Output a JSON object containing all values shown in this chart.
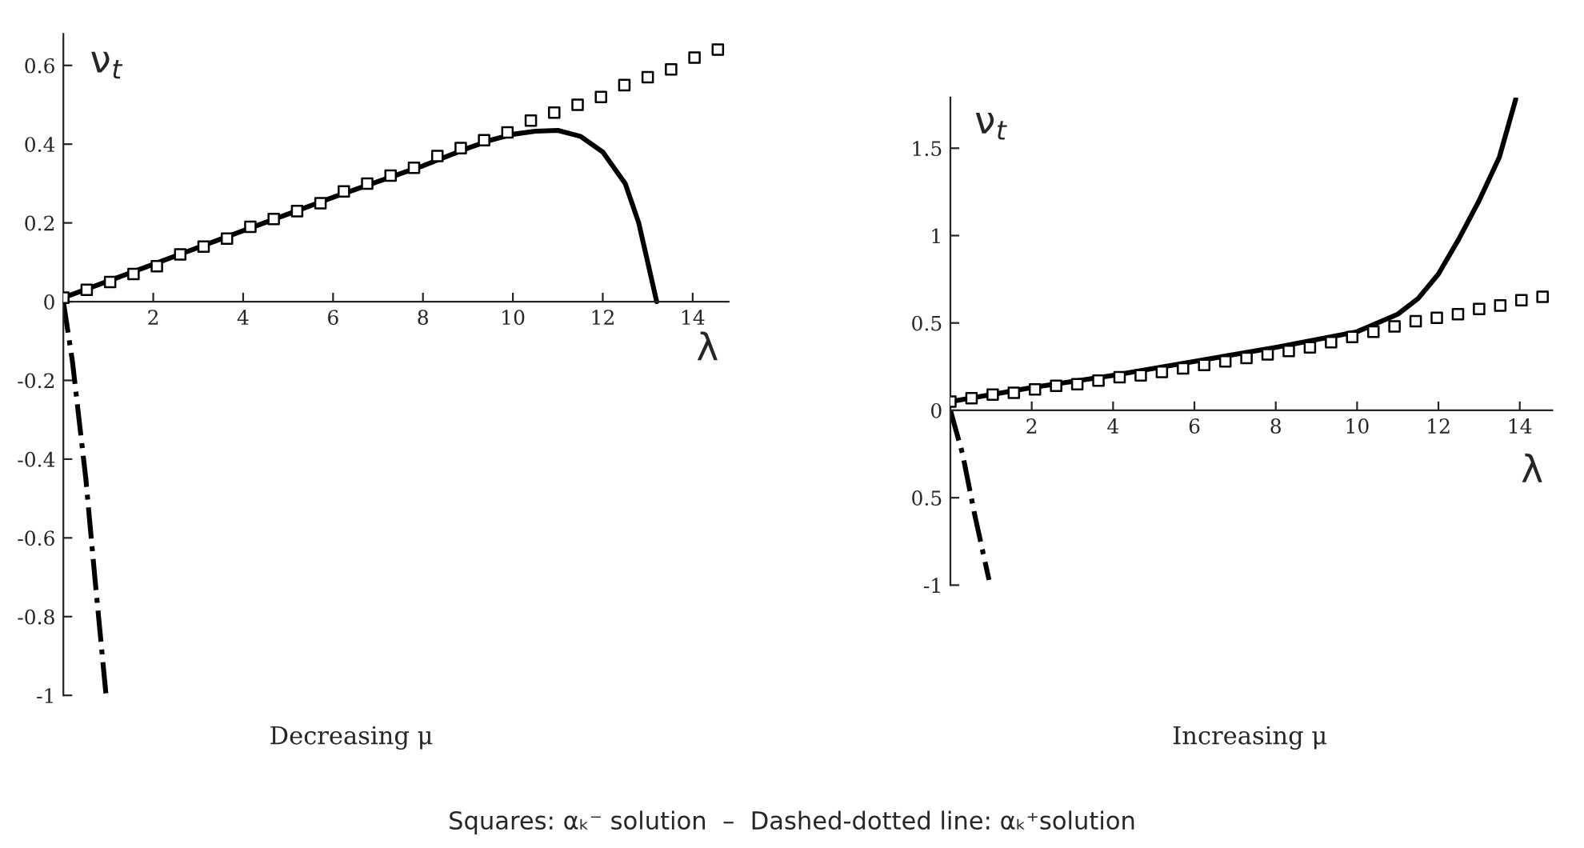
{
  "chart_data": [
    {
      "type": "line",
      "xlabel": "λ",
      "ylabel": "ν$_{t}$",
      "xlim": [
        0,
        14.8
      ],
      "ylim": [
        -1.0,
        0.68
      ],
      "xticks": [
        2,
        4,
        6,
        8,
        10,
        12,
        14
      ],
      "yticks": [
        -1,
        -0.8,
        -0.6,
        -0.4,
        -0.2,
        0,
        0.2,
        0.4,
        0.6
      ],
      "grid": false,
      "legend": false,
      "annotations": [
        "Decreasing μ",
        "Squares: αₖ⁻ solution  –  Dashed-dotted line: αₖ⁺solution"
      ],
      "series": [
        {
          "type": "scatter",
          "marker": "square",
          "color": "#000000",
          "x": [
            0,
            0.52,
            1.04,
            1.56,
            2.08,
            2.6,
            3.12,
            3.64,
            4.16,
            4.68,
            5.2,
            5.72,
            6.24,
            6.76,
            7.28,
            7.8,
            8.32,
            8.84,
            9.36,
            9.88,
            10.4,
            10.92,
            11.44,
            11.96,
            12.48,
            13.0,
            13.52,
            14.04,
            14.56
          ],
          "values": [
            0.01,
            0.03,
            0.05,
            0.07,
            0.09,
            0.12,
            0.14,
            0.16,
            0.19,
            0.21,
            0.23,
            0.25,
            0.28,
            0.3,
            0.32,
            0.34,
            0.37,
            0.39,
            0.41,
            0.43,
            0.46,
            0.48,
            0.5,
            0.52,
            0.55,
            0.57,
            0.59,
            0.62,
            0.64
          ]
        },
        {
          "line_style": "solid",
          "color": "#000000",
          "x": [
            0,
            2,
            4,
            6,
            8,
            9,
            9.5,
            10,
            10.5,
            11,
            11.5,
            12,
            12.5,
            12.8,
            13,
            13.2
          ],
          "values": [
            0.01,
            0.095,
            0.18,
            0.265,
            0.345,
            0.39,
            0.41,
            0.425,
            0.433,
            0.435,
            0.42,
            0.38,
            0.3,
            0.2,
            0.1,
            0.0
          ]
        },
        {
          "line_style": "dashdot",
          "color": "#000000",
          "x": [
            0,
            0.2,
            0.5,
            0.7,
            0.95
          ],
          "values": [
            0,
            -0.15,
            -0.45,
            -0.7,
            -1.0
          ]
        }
      ]
    },
    {
      "type": "line",
      "xlabel": "λ",
      "ylabel": "ν$_{t}$",
      "xlim": [
        0,
        14.8
      ],
      "ylim": [
        -1.0,
        1.79
      ],
      "xticks": [
        2,
        4,
        6,
        8,
        10,
        12,
        14
      ],
      "yticks": [
        -1,
        {
          "value": -0.5,
          "label": "0.5"
        },
        0,
        0.5,
        1,
        1.5
      ],
      "grid": false,
      "legend": false,
      "annotations": [
        "Increasing μ"
      ],
      "series": [
        {
          "type": "scatter",
          "marker": "square",
          "color": "#000000",
          "x": [
            0,
            0.52,
            1.04,
            1.56,
            2.08,
            2.6,
            3.12,
            3.64,
            4.16,
            4.68,
            5.2,
            5.72,
            6.24,
            6.76,
            7.28,
            7.8,
            8.32,
            8.84,
            9.36,
            9.88,
            10.4,
            10.92,
            11.44,
            11.96,
            12.48,
            13.0,
            13.52,
            14.04,
            14.56
          ],
          "values": [
            0.05,
            0.07,
            0.09,
            0.1,
            0.12,
            0.14,
            0.15,
            0.17,
            0.19,
            0.2,
            0.22,
            0.24,
            0.26,
            0.28,
            0.3,
            0.32,
            0.34,
            0.36,
            0.39,
            0.42,
            0.45,
            0.48,
            0.51,
            0.53,
            0.55,
            0.58,
            0.6,
            0.63,
            0.65
          ]
        },
        {
          "line_style": "solid",
          "color": "#000000",
          "x": [
            0,
            2,
            4,
            6,
            8,
            10,
            11,
            11.5,
            12,
            12.5,
            13,
            13.5,
            13.9
          ],
          "values": [
            0.05,
            0.13,
            0.2,
            0.28,
            0.36,
            0.45,
            0.55,
            0.64,
            0.78,
            0.98,
            1.2,
            1.45,
            1.78
          ]
        },
        {
          "line_style": "dashdot",
          "color": "#000000",
          "x": [
            0,
            0.3,
            0.6,
            0.95
          ],
          "values": [
            0,
            -0.25,
            -0.6,
            -0.97
          ]
        }
      ]
    }
  ]
}
